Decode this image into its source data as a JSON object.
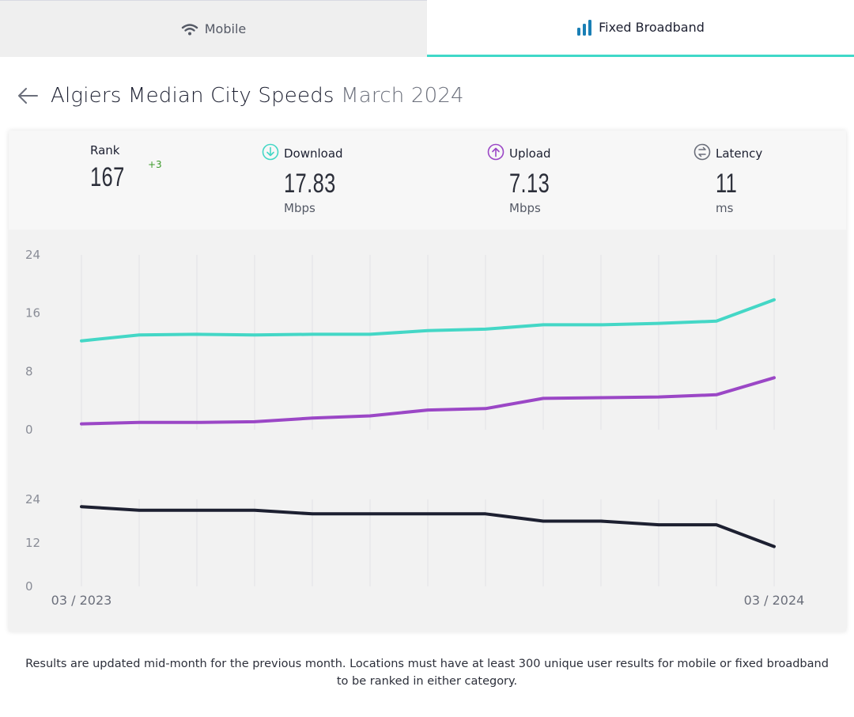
{
  "tabs": {
    "mobile_label": "Mobile",
    "fixed_label": "Fixed Broadband"
  },
  "header": {
    "title": "Algiers Median City Speeds",
    "period": "March 2024"
  },
  "stats": {
    "rank": {
      "label": "Rank",
      "value": "167",
      "delta": "+3"
    },
    "download": {
      "label": "Download",
      "value": "17.83",
      "unit": "Mbps"
    },
    "upload": {
      "label": "Upload",
      "value": "7.13",
      "unit": "Mbps"
    },
    "latency": {
      "label": "Latency",
      "value": "11",
      "unit": "ms"
    }
  },
  "colors": {
    "accent": "#3fd8c8",
    "download": "#44d7c6",
    "upload": "#9b47c6",
    "latency": "#1d2031"
  },
  "chart_data": [
    {
      "type": "line",
      "x": [
        "03/2023",
        "04/2023",
        "05/2023",
        "06/2023",
        "07/2023",
        "08/2023",
        "09/2023",
        "10/2023",
        "11/2023",
        "12/2023",
        "01/2024",
        "02/2024",
        "03/2024"
      ],
      "ylim": [
        0,
        24
      ],
      "yticks": [
        "24",
        "16",
        "8",
        "0"
      ],
      "series": [
        {
          "name": "Download",
          "values": [
            12.2,
            13.0,
            13.1,
            13.0,
            13.1,
            13.1,
            13.6,
            13.8,
            14.4,
            14.4,
            14.6,
            14.9,
            17.83
          ]
        },
        {
          "name": "Upload",
          "values": [
            0.8,
            1.0,
            1.0,
            1.1,
            1.6,
            1.9,
            2.7,
            2.9,
            4.3,
            4.4,
            4.5,
            4.8,
            7.13
          ]
        }
      ]
    },
    {
      "type": "line",
      "x": [
        "03/2023",
        "04/2023",
        "05/2023",
        "06/2023",
        "07/2023",
        "08/2023",
        "09/2023",
        "10/2023",
        "11/2023",
        "12/2023",
        "01/2024",
        "02/2024",
        "03/2024"
      ],
      "ylim": [
        0,
        24
      ],
      "yticks": [
        "24",
        "12",
        "0"
      ],
      "series": [
        {
          "name": "Latency",
          "values": [
            22,
            21,
            21,
            21,
            20,
            20,
            20,
            20,
            18,
            18,
            17,
            17,
            11
          ]
        }
      ]
    }
  ],
  "x_axis": {
    "start_label": "03 / 2023",
    "end_label": "03 / 2024"
  },
  "footnote": "Results are updated mid-month for the previous month. Locations must have at least 300 unique user results for mobile or fixed broadband to be ranked in either category."
}
